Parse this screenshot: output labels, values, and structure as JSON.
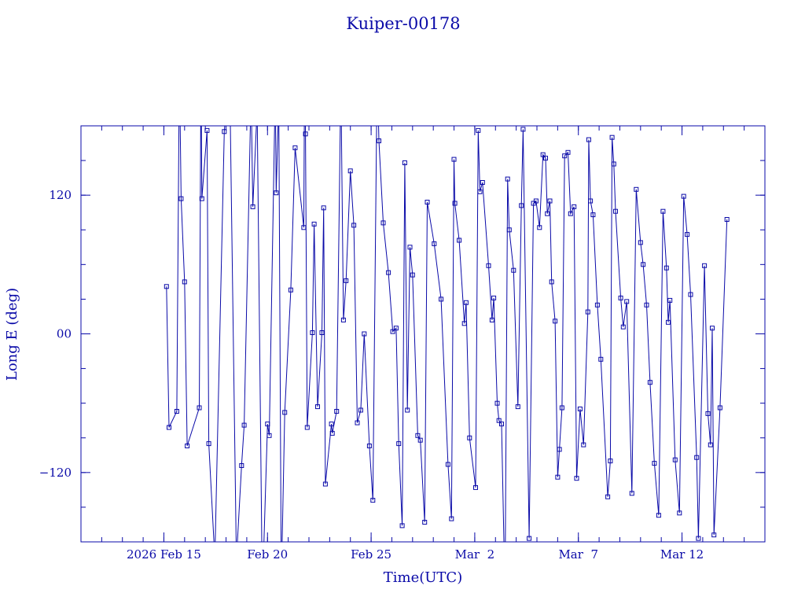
{
  "chart_data": {
    "type": "line",
    "title": "Kuiper-00178",
    "xlabel": "Time(UTC)",
    "ylabel": "Long E (deg)",
    "x_ticks": [
      {
        "value": "2026-02-15",
        "label": "2026 Feb 15"
      },
      {
        "value": "2026-02-20",
        "label": "Feb 20"
      },
      {
        "value": "2026-02-25",
        "label": "Feb 25"
      },
      {
        "value": "2026-03-02",
        "label": "Mar  2"
      },
      {
        "value": "2026-03-07",
        "label": "Mar  7"
      },
      {
        "value": "2026-03-12",
        "label": "Mar 12"
      }
    ],
    "y_ticks": [
      {
        "value": 120,
        "label": "120"
      },
      {
        "value": 0,
        "label": "00"
      },
      {
        "value": -120,
        "label": "−120"
      }
    ],
    "xlim": [
      "2026-02-11 00:00",
      "2026-03-16 00:00"
    ],
    "ylim": [
      -180,
      180
    ],
    "grid": false,
    "colors": {
      "line": "#0a0aa8",
      "text": "#0a0aa8",
      "background": "#ffffff"
    },
    "series": [
      {
        "marker": "square",
        "points": [
          [
            "2026-02-15 03:00",
            41
          ],
          [
            "2026-02-15 06:00",
            -81
          ],
          [
            "2026-02-15 15:00",
            -67
          ],
          [
            "2026-02-15 18:00",
            234
          ],
          [
            "2026-02-15 20:00",
            117
          ],
          [
            "2026-02-16 00:00",
            45
          ],
          [
            "2026-02-16 03:00",
            -97
          ],
          [
            "2026-02-16 17:00",
            -64
          ],
          [
            "2026-02-16 19:00",
            235
          ],
          [
            "2026-02-16 20:00",
            117
          ],
          [
            "2026-02-17 02:00",
            176
          ],
          [
            "2026-02-17 04:00",
            -95
          ],
          [
            "2026-02-17 11:00",
            -195
          ],
          [
            "2026-02-17 22:00",
            175
          ],
          [
            "2026-02-18 04:00",
            236
          ],
          [
            "2026-02-18 12:00",
            -196
          ],
          [
            "2026-02-18 18:00",
            -114
          ],
          [
            "2026-02-18 21:00",
            -79
          ],
          [
            "2026-02-19 05:00",
            211
          ],
          [
            "2026-02-19 07:00",
            110
          ],
          [
            "2026-02-19 12:00",
            195
          ],
          [
            "2026-02-19 18:00",
            -226
          ],
          [
            "2026-02-20 00:00",
            -78
          ],
          [
            "2026-02-20 02:00",
            -88
          ],
          [
            "2026-02-20 09:00",
            215
          ],
          [
            "2026-02-20 10:00",
            122
          ],
          [
            "2026-02-20 13:00",
            202
          ],
          [
            "2026-02-20 16:00",
            -219
          ],
          [
            "2026-02-20 20:00",
            -68
          ],
          [
            "2026-02-21 03:00",
            38
          ],
          [
            "2026-02-21 08:00",
            161
          ],
          [
            "2026-02-21 18:00",
            92
          ],
          [
            "2026-02-21 19:00",
            232
          ],
          [
            "2026-02-21 20:00",
            173
          ],
          [
            "2026-02-21 22:00",
            -81
          ],
          [
            "2026-02-22 04:00",
            1
          ],
          [
            "2026-02-22 06:00",
            95
          ],
          [
            "2026-02-22 10:00",
            -63
          ],
          [
            "2026-02-22 15:00",
            1
          ],
          [
            "2026-02-22 17:00",
            109
          ],
          [
            "2026-02-22 19:00",
            -130
          ],
          [
            "2026-02-23 02:00",
            -78
          ],
          [
            "2026-02-23 03:00",
            -86
          ],
          [
            "2026-02-23 08:00",
            -67
          ],
          [
            "2026-02-23 13:00",
            221
          ],
          [
            "2026-02-23 16:00",
            12
          ],
          [
            "2026-02-23 19:00",
            46
          ],
          [
            "2026-02-24 00:00",
            141
          ],
          [
            "2026-02-24 04:00",
            94
          ],
          [
            "2026-02-24 08:00",
            -77
          ],
          [
            "2026-02-24 12:00",
            -66
          ],
          [
            "2026-02-24 16:00",
            0
          ],
          [
            "2026-02-24 22:00",
            -97
          ],
          [
            "2026-02-25 02:00",
            -144
          ],
          [
            "2026-02-25 07:00",
            232
          ],
          [
            "2026-02-25 09:00",
            167
          ],
          [
            "2026-02-25 14:00",
            96
          ],
          [
            "2026-02-25 20:00",
            53
          ],
          [
            "2026-02-26 01:00",
            2
          ],
          [
            "2026-02-26 05:00",
            5
          ],
          [
            "2026-02-26 08:00",
            -95
          ],
          [
            "2026-02-26 12:00",
            -166
          ],
          [
            "2026-02-26 15:00",
            148
          ],
          [
            "2026-02-26 18:00",
            -66
          ],
          [
            "2026-02-26 21:00",
            75
          ],
          [
            "2026-02-27 00:00",
            51
          ],
          [
            "2026-02-27 06:00",
            -88
          ],
          [
            "2026-02-27 09:00",
            -92
          ],
          [
            "2026-02-27 14:00",
            -163
          ],
          [
            "2026-02-27 17:00",
            114
          ],
          [
            "2026-02-28 01:00",
            78
          ],
          [
            "2026-02-28 09:00",
            30
          ],
          [
            "2026-02-28 17:00",
            -113
          ],
          [
            "2026-02-28 21:00",
            -160
          ],
          [
            "2026-03-01 00:00",
            151
          ],
          [
            "2026-03-01 01:00",
            113
          ],
          [
            "2026-03-01 06:00",
            81
          ],
          [
            "2026-03-01 12:00",
            9
          ],
          [
            "2026-03-01 14:00",
            27
          ],
          [
            "2026-03-01 18:00",
            -90
          ],
          [
            "2026-03-02 01:00",
            -133
          ],
          [
            "2026-03-02 04:00",
            176
          ],
          [
            "2026-03-02 06:00",
            123
          ],
          [
            "2026-03-02 09:00",
            131
          ],
          [
            "2026-03-02 16:00",
            59
          ],
          [
            "2026-03-02 20:00",
            12
          ],
          [
            "2026-03-02 22:00",
            31
          ],
          [
            "2026-03-03 02:00",
            -60
          ],
          [
            "2026-03-03 04:00",
            -75
          ],
          [
            "2026-03-03 07:00",
            -78
          ],
          [
            "2026-03-03 11:00",
            -228
          ],
          [
            "2026-03-03 14:00",
            134
          ],
          [
            "2026-03-03 16:00",
            90
          ],
          [
            "2026-03-03 21:00",
            55
          ],
          [
            "2026-03-04 02:00",
            -63
          ],
          [
            "2026-03-04 06:00",
            111
          ],
          [
            "2026-03-04 08:00",
            177
          ],
          [
            "2026-03-04 15:00",
            -177
          ],
          [
            "2026-03-04 20:00",
            113
          ],
          [
            "2026-03-04 23:00",
            115
          ],
          [
            "2026-03-05 03:00",
            92
          ],
          [
            "2026-03-05 07:00",
            155
          ],
          [
            "2026-03-05 10:00",
            152
          ],
          [
            "2026-03-05 12:00",
            104
          ],
          [
            "2026-03-05 15:00",
            115
          ],
          [
            "2026-03-05 17:00",
            45
          ],
          [
            "2026-03-05 21:00",
            11
          ],
          [
            "2026-03-06 00:00",
            -124
          ],
          [
            "2026-03-06 02:00",
            -100
          ],
          [
            "2026-03-06 05:00",
            -64
          ],
          [
            "2026-03-06 08:00",
            154
          ],
          [
            "2026-03-06 12:00",
            157
          ],
          [
            "2026-03-06 15:00",
            104
          ],
          [
            "2026-03-06 19:00",
            110
          ],
          [
            "2026-03-06 22:00",
            -125
          ],
          [
            "2026-03-07 02:00",
            -65
          ],
          [
            "2026-03-07 06:00",
            -96
          ],
          [
            "2026-03-07 11:00",
            19
          ],
          [
            "2026-03-07 12:00",
            168
          ],
          [
            "2026-03-07 14:00",
            115
          ],
          [
            "2026-03-07 17:00",
            103
          ],
          [
            "2026-03-07 22:00",
            25
          ],
          [
            "2026-03-08 02:00",
            -22
          ],
          [
            "2026-03-08 10:00",
            -141
          ],
          [
            "2026-03-08 13:00",
            -110
          ],
          [
            "2026-03-08 15:00",
            170
          ],
          [
            "2026-03-08 17:00",
            147
          ],
          [
            "2026-03-08 19:00",
            106
          ],
          [
            "2026-03-09 01:00",
            31
          ],
          [
            "2026-03-09 04:00",
            6
          ],
          [
            "2026-03-09 08:00",
            28
          ],
          [
            "2026-03-09 14:00",
            -138
          ],
          [
            "2026-03-09 19:00",
            125
          ],
          [
            "2026-03-10 00:00",
            79
          ],
          [
            "2026-03-10 03:00",
            60
          ],
          [
            "2026-03-10 07:00",
            25
          ],
          [
            "2026-03-10 11:00",
            -42
          ],
          [
            "2026-03-10 16:00",
            -112
          ],
          [
            "2026-03-10 21:00",
            -157
          ],
          [
            "2026-03-11 02:00",
            106
          ],
          [
            "2026-03-11 06:00",
            57
          ],
          [
            "2026-03-11 08:00",
            10
          ],
          [
            "2026-03-11 10:00",
            29
          ],
          [
            "2026-03-11 16:00",
            -109
          ],
          [
            "2026-03-11 21:00",
            -155
          ],
          [
            "2026-03-12 02:00",
            119
          ],
          [
            "2026-03-12 06:00",
            86
          ],
          [
            "2026-03-12 10:00",
            34
          ],
          [
            "2026-03-12 17:00",
            -107
          ],
          [
            "2026-03-12 19:00",
            -177
          ],
          [
            "2026-03-13 02:00",
            59
          ],
          [
            "2026-03-13 06:00",
            -69
          ],
          [
            "2026-03-13 09:00",
            -96
          ],
          [
            "2026-03-13 11:00",
            5
          ],
          [
            "2026-03-13 13:00",
            -174
          ],
          [
            "2026-03-13 20:00",
            -64
          ],
          [
            "2026-03-14 04:00",
            99
          ]
        ]
      }
    ]
  }
}
